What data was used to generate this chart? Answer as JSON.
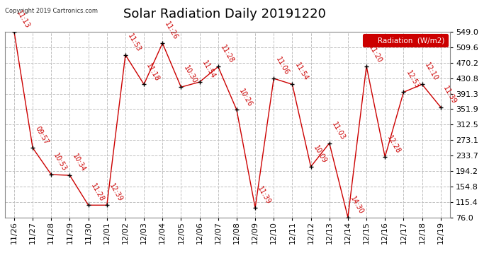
{
  "title": "Solar Radiation Daily 20191220",
  "copyright": "Copyright 2019 Cartronics.com",
  "legend_label": "Radiation  (W/m2)",
  "ylim": [
    76.0,
    549.0
  ],
  "yticks": [
    76.0,
    115.4,
    154.8,
    194.2,
    233.7,
    273.1,
    312.5,
    351.9,
    391.3,
    430.8,
    470.2,
    509.6,
    549.0
  ],
  "dates": [
    "11/26",
    "11/27",
    "11/28",
    "11/29",
    "11/30",
    "12/01",
    "12/02",
    "12/03",
    "12/04",
    "12/05",
    "12/06",
    "12/07",
    "12/08",
    "12/09",
    "12/10",
    "12/11",
    "12/12",
    "12/13",
    "12/14",
    "12/15",
    "12/16",
    "12/17",
    "12/18",
    "12/19"
  ],
  "values": [
    549.0,
    253.0,
    185.0,
    183.0,
    107.0,
    107.0,
    490.0,
    415.0,
    520.0,
    408.0,
    421.0,
    460.0,
    350.0,
    100.0,
    430.0,
    415.0,
    205.0,
    265.0,
    76.0,
    461.0,
    230.0,
    395.0,
    415.0,
    357.0
  ],
  "time_labels": [
    "11:13",
    "09:57",
    "10:53",
    "10:34",
    "11:28",
    "12:39",
    "11:53",
    "11:18",
    "11:26",
    "10:30",
    "11:54",
    "11:28",
    "10:26",
    "11:39",
    "11:06",
    "11:54",
    "10:09",
    "11:03",
    "14:30",
    "11:20",
    "12:28",
    "12:53",
    "12:10",
    "11:39"
  ],
  "line_color": "#cc0000",
  "marker_color": "#000000",
  "background_color": "#ffffff",
  "grid_color": "#c0c0c0",
  "title_fontsize": 13,
  "tick_fontsize": 8,
  "label_fontsize": 7,
  "annot_fontsize": 7
}
